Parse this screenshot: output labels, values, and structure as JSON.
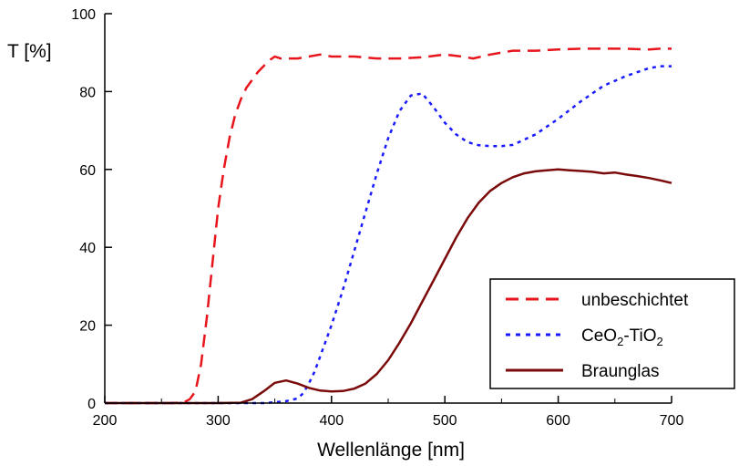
{
  "chart_data": {
    "type": "line",
    "xlabel": "Wellenlänge [nm]",
    "ylabel": "T [%]",
    "xlim": [
      200,
      700
    ],
    "ylim": [
      0,
      100
    ],
    "x_ticks": [
      200,
      300,
      400,
      500,
      600,
      700
    ],
    "y_ticks": [
      0,
      20,
      40,
      60,
      80,
      100
    ],
    "grid": false,
    "legend_position": "bottom-right",
    "legend": {
      "unbeschichtet": "unbeschichtet",
      "ceo2_base": "CeO",
      "ceo2_sub": "2",
      "dash": "-",
      "tio2_base": "TiO",
      "tio2_sub": "2",
      "braunglas": "Braunglas"
    },
    "series": [
      {
        "name": "unbeschichtet",
        "color": "#e8141b",
        "style": "dashed",
        "x": [
          200,
          260,
          270,
          275,
          280,
          285,
          290,
          295,
          300,
          305,
          310,
          315,
          320,
          325,
          330,
          335,
          340,
          345,
          350,
          355,
          360,
          370,
          380,
          390,
          400,
          420,
          440,
          460,
          480,
          500,
          515,
          525,
          540,
          560,
          580,
          600,
          620,
          640,
          660,
          680,
          690,
          700
        ],
        "y": [
          0,
          0,
          0.2,
          1,
          3,
          10,
          22,
          36,
          50,
          60,
          68,
          74,
          78,
          81,
          83,
          85,
          86.5,
          88,
          89,
          88.5,
          88.5,
          88.5,
          89,
          89.5,
          89,
          89,
          88.5,
          88.5,
          88.8,
          89.5,
          89,
          88.5,
          89.5,
          90.5,
          90.5,
          90.8,
          91,
          91,
          91,
          90.8,
          91,
          91
        ]
      },
      {
        "name": "CeO2-TiO2",
        "color": "#1a1aff",
        "style": "dotted",
        "x": [
          200,
          300,
          340,
          350,
          360,
          370,
          375,
          380,
          385,
          390,
          400,
          410,
          420,
          430,
          440,
          450,
          460,
          470,
          480,
          490,
          500,
          510,
          520,
          530,
          540,
          550,
          560,
          580,
          600,
          620,
          640,
          660,
          680,
          690,
          700
        ],
        "y": [
          0,
          0,
          0,
          0.2,
          0.5,
          1.2,
          2.5,
          5,
          8,
          12,
          20,
          29,
          39,
          49,
          59,
          68,
          75,
          79,
          79.5,
          76,
          72,
          69,
          67,
          66.2,
          66,
          66,
          66.3,
          69,
          73,
          77.5,
          81.5,
          84,
          86,
          86.5,
          86.5
        ]
      },
      {
        "name": "Braunglas",
        "color": "#7b0a0a",
        "style": "solid",
        "x": [
          200,
          300,
          320,
          330,
          340,
          350,
          360,
          370,
          380,
          390,
          400,
          410,
          420,
          430,
          440,
          450,
          460,
          470,
          480,
          490,
          500,
          510,
          520,
          530,
          540,
          550,
          560,
          570,
          580,
          590,
          600,
          610,
          620,
          630,
          640,
          650,
          660,
          670,
          680,
          690,
          700
        ],
        "y": [
          0,
          0,
          0.1,
          1,
          3,
          5.2,
          5.8,
          5,
          3.9,
          3.2,
          3,
          3.1,
          3.7,
          5,
          7.5,
          11,
          15.5,
          20.5,
          26,
          31.5,
          37,
          42.5,
          47.5,
          51.5,
          54.5,
          56.5,
          58,
          59,
          59.5,
          59.8,
          60,
          59.8,
          59.6,
          59.4,
          59,
          59.2,
          58.7,
          58.3,
          57.8,
          57.2,
          56.5
        ]
      }
    ]
  }
}
